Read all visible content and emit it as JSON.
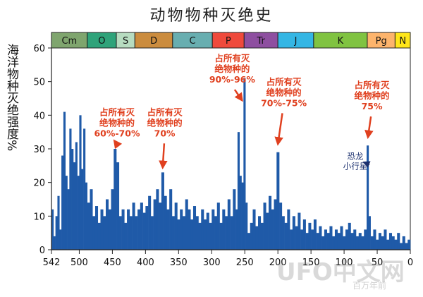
{
  "chart_data": {
    "type": "bar",
    "title": "动物物种灭绝史",
    "ylabel": "海洋物种灭绝强度%",
    "xlabel": "百万年前",
    "xlim": [
      542,
      0
    ],
    "ylim": [
      0,
      60
    ],
    "x_ticks": [
      "542",
      "500",
      "450",
      "400",
      "350",
      "300",
      "250",
      "200",
      "150",
      "100",
      "50",
      "0"
    ],
    "y_ticks": [
      "0",
      "10",
      "20",
      "30",
      "40",
      "50",
      "60"
    ],
    "bar_color": "#1f5aa8",
    "periods": [
      {
        "label": "Cm",
        "start": 542,
        "end": 488,
        "color": "#7fa56e"
      },
      {
        "label": "O",
        "start": 488,
        "end": 444,
        "color": "#2fa37a"
      },
      {
        "label": "S",
        "start": 444,
        "end": 416,
        "color": "#b7dcc0"
      },
      {
        "label": "D",
        "start": 416,
        "end": 359,
        "color": "#cb8c3e"
      },
      {
        "label": "C",
        "start": 359,
        "end": 299,
        "color": "#68aeb0"
      },
      {
        "label": "P",
        "start": 299,
        "end": 251,
        "color": "#ef4a3c"
      },
      {
        "label": "Tr",
        "start": 251,
        "end": 200,
        "color": "#8e4fa0"
      },
      {
        "label": "J",
        "start": 200,
        "end": 146,
        "color": "#34b6e4"
      },
      {
        "label": "K",
        "start": 146,
        "end": 65,
        "color": "#80c341"
      },
      {
        "label": "Pg",
        "start": 65,
        "end": 23,
        "color": "#fdb46c"
      },
      {
        "label": "N",
        "start": 23,
        "end": 0,
        "color": "#ffe619"
      }
    ],
    "values": [
      {
        "x": 542,
        "y": 12
      },
      {
        "x": 539,
        "y": 4
      },
      {
        "x": 536,
        "y": 10
      },
      {
        "x": 533,
        "y": 16
      },
      {
        "x": 530,
        "y": 6
      },
      {
        "x": 527,
        "y": 28
      },
      {
        "x": 524,
        "y": 41
      },
      {
        "x": 521,
        "y": 22
      },
      {
        "x": 518,
        "y": 18
      },
      {
        "x": 515,
        "y": 36
      },
      {
        "x": 512,
        "y": 30
      },
      {
        "x": 509,
        "y": 26
      },
      {
        "x": 506,
        "y": 32
      },
      {
        "x": 503,
        "y": 22
      },
      {
        "x": 500,
        "y": 40
      },
      {
        "x": 497,
        "y": 24
      },
      {
        "x": 494,
        "y": 36
      },
      {
        "x": 491,
        "y": 20
      },
      {
        "x": 488,
        "y": 14
      },
      {
        "x": 484,
        "y": 18
      },
      {
        "x": 480,
        "y": 10
      },
      {
        "x": 476,
        "y": 13
      },
      {
        "x": 472,
        "y": 8
      },
      {
        "x": 468,
        "y": 12
      },
      {
        "x": 464,
        "y": 10
      },
      {
        "x": 460,
        "y": 15
      },
      {
        "x": 456,
        "y": 12
      },
      {
        "x": 452,
        "y": 18
      },
      {
        "x": 448,
        "y": 30
      },
      {
        "x": 444,
        "y": 26
      },
      {
        "x": 440,
        "y": 10
      },
      {
        "x": 436,
        "y": 12
      },
      {
        "x": 432,
        "y": 8
      },
      {
        "x": 428,
        "y": 12
      },
      {
        "x": 424,
        "y": 10
      },
      {
        "x": 420,
        "y": 14
      },
      {
        "x": 416,
        "y": 10
      },
      {
        "x": 412,
        "y": 12
      },
      {
        "x": 408,
        "y": 14
      },
      {
        "x": 404,
        "y": 11
      },
      {
        "x": 400,
        "y": 13
      },
      {
        "x": 396,
        "y": 16
      },
      {
        "x": 392,
        "y": 10
      },
      {
        "x": 388,
        "y": 15
      },
      {
        "x": 384,
        "y": 18
      },
      {
        "x": 380,
        "y": 14
      },
      {
        "x": 376,
        "y": 23
      },
      {
        "x": 372,
        "y": 16
      },
      {
        "x": 368,
        "y": 12
      },
      {
        "x": 364,
        "y": 18
      },
      {
        "x": 360,
        "y": 10
      },
      {
        "x": 356,
        "y": 14
      },
      {
        "x": 352,
        "y": 9
      },
      {
        "x": 348,
        "y": 12
      },
      {
        "x": 344,
        "y": 10
      },
      {
        "x": 340,
        "y": 15
      },
      {
        "x": 336,
        "y": 12
      },
      {
        "x": 332,
        "y": 9
      },
      {
        "x": 328,
        "y": 13
      },
      {
        "x": 324,
        "y": 10
      },
      {
        "x": 320,
        "y": 8
      },
      {
        "x": 316,
        "y": 12
      },
      {
        "x": 312,
        "y": 9
      },
      {
        "x": 308,
        "y": 11
      },
      {
        "x": 304,
        "y": 8
      },
      {
        "x": 300,
        "y": 12
      },
      {
        "x": 296,
        "y": 10
      },
      {
        "x": 292,
        "y": 14
      },
      {
        "x": 288,
        "y": 8
      },
      {
        "x": 284,
        "y": 12
      },
      {
        "x": 280,
        "y": 10
      },
      {
        "x": 276,
        "y": 15
      },
      {
        "x": 272,
        "y": 10
      },
      {
        "x": 268,
        "y": 18
      },
      {
        "x": 264,
        "y": 12
      },
      {
        "x": 261,
        "y": 35
      },
      {
        "x": 258,
        "y": 22
      },
      {
        "x": 255,
        "y": 20
      },
      {
        "x": 252,
        "y": 51
      },
      {
        "x": 249,
        "y": 14
      },
      {
        "x": 246,
        "y": 5
      },
      {
        "x": 242,
        "y": 8
      },
      {
        "x": 238,
        "y": 12
      },
      {
        "x": 234,
        "y": 7
      },
      {
        "x": 230,
        "y": 10
      },
      {
        "x": 226,
        "y": 8
      },
      {
        "x": 222,
        "y": 14
      },
      {
        "x": 218,
        "y": 11
      },
      {
        "x": 214,
        "y": 16
      },
      {
        "x": 210,
        "y": 12
      },
      {
        "x": 206,
        "y": 15
      },
      {
        "x": 202,
        "y": 29
      },
      {
        "x": 198,
        "y": 14
      },
      {
        "x": 194,
        "y": 10
      },
      {
        "x": 190,
        "y": 8
      },
      {
        "x": 186,
        "y": 12
      },
      {
        "x": 182,
        "y": 6
      },
      {
        "x": 178,
        "y": 10
      },
      {
        "x": 174,
        "y": 7
      },
      {
        "x": 170,
        "y": 11
      },
      {
        "x": 166,
        "y": 6
      },
      {
        "x": 162,
        "y": 9
      },
      {
        "x": 158,
        "y": 5
      },
      {
        "x": 154,
        "y": 8
      },
      {
        "x": 150,
        "y": 6
      },
      {
        "x": 146,
        "y": 9
      },
      {
        "x": 142,
        "y": 5
      },
      {
        "x": 138,
        "y": 7
      },
      {
        "x": 134,
        "y": 4
      },
      {
        "x": 130,
        "y": 6
      },
      {
        "x": 126,
        "y": 5
      },
      {
        "x": 122,
        "y": 7
      },
      {
        "x": 118,
        "y": 4
      },
      {
        "x": 114,
        "y": 6
      },
      {
        "x": 110,
        "y": 5
      },
      {
        "x": 106,
        "y": 7
      },
      {
        "x": 102,
        "y": 4
      },
      {
        "x": 98,
        "y": 6
      },
      {
        "x": 94,
        "y": 8
      },
      {
        "x": 90,
        "y": 5
      },
      {
        "x": 86,
        "y": 6
      },
      {
        "x": 82,
        "y": 4
      },
      {
        "x": 78,
        "y": 5
      },
      {
        "x": 74,
        "y": 4
      },
      {
        "x": 70,
        "y": 6
      },
      {
        "x": 66,
        "y": 31
      },
      {
        "x": 63,
        "y": 10
      },
      {
        "x": 60,
        "y": 4
      },
      {
        "x": 56,
        "y": 6
      },
      {
        "x": 52,
        "y": 3
      },
      {
        "x": 48,
        "y": 5
      },
      {
        "x": 44,
        "y": 4
      },
      {
        "x": 40,
        "y": 6
      },
      {
        "x": 36,
        "y": 3
      },
      {
        "x": 32,
        "y": 5
      },
      {
        "x": 28,
        "y": 4
      },
      {
        "x": 24,
        "y": 3
      },
      {
        "x": 20,
        "y": 5
      },
      {
        "x": 16,
        "y": 2
      },
      {
        "x": 12,
        "y": 4
      },
      {
        "x": 8,
        "y": 2
      },
      {
        "x": 4,
        "y": 3
      }
    ],
    "annotations": [
      {
        "lines": [
          "占所有灭",
          "绝物种的",
          "60%-70%"
        ],
        "x": 443,
        "y": 40,
        "arrow_x": 447,
        "arrow_y": 32
      },
      {
        "lines": [
          "占所有灭",
          "绝物种的",
          "70%"
        ],
        "x": 371,
        "y": 40,
        "arrow_x": 374,
        "arrow_y": 24
      },
      {
        "lines": [
          "占所有灭",
          "绝物种的",
          "90%-96%"
        ],
        "x": 269,
        "y": 56,
        "arrow_x": 254,
        "arrow_y": 44
      },
      {
        "lines": [
          "占所有灭",
          "绝物种的",
          "70%-75%"
        ],
        "x": 191,
        "y": 49,
        "arrow_x": 200,
        "arrow_y": 31
      },
      {
        "lines": [
          "占所有灭",
          "绝物种的",
          "75%"
        ],
        "x": 58,
        "y": 48,
        "arrow_x": 64,
        "arrow_y": 33
      }
    ],
    "asteroid_note": {
      "text": [
        "恐龙",
        "小行星"
      ],
      "x": 83,
      "y": 27,
      "arrow_x": 70,
      "arrow_y": 26
    }
  },
  "watermark": "UFO中文网",
  "watermark_sub": "百万年前"
}
